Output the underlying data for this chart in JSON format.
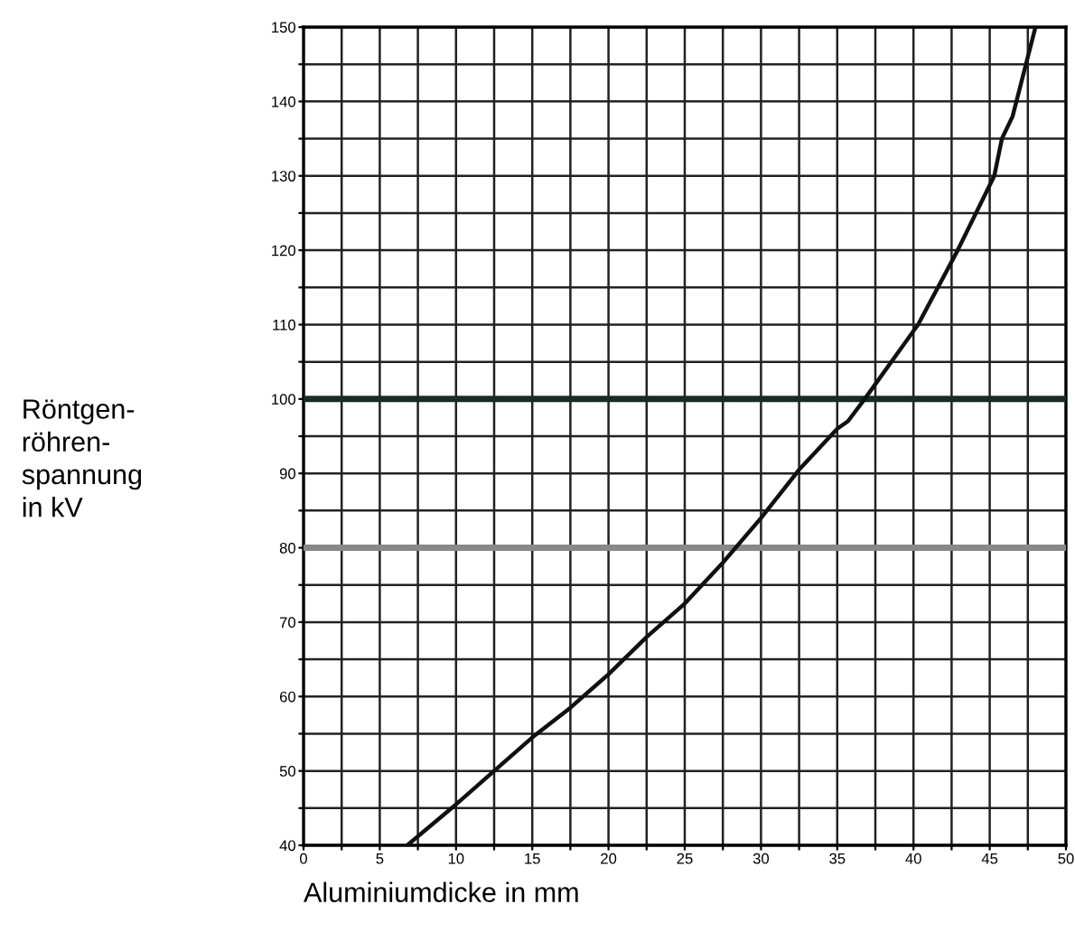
{
  "chart_data": {
    "type": "line",
    "xlabel": "Aluminiumdicke in mm",
    "ylabel": "Röntgen-\nröhren-\nspannung\nin kV",
    "x": [
      6.8,
      10,
      12.5,
      15,
      17.5,
      20,
      22.5,
      25,
      27.5,
      30,
      32.5,
      35,
      35.7,
      36.8,
      37.5,
      40.3,
      42.9,
      45.3,
      45.8,
      46.5,
      48
    ],
    "series": [
      {
        "color": "#111111",
        "values": [
          40,
          45.5,
          50,
          54.5,
          58.5,
          63,
          68,
          72.5,
          78,
          84,
          90.5,
          96,
          97,
          100,
          102,
          110,
          120,
          130,
          135,
          138,
          150
        ]
      }
    ],
    "xlim": [
      0,
      50
    ],
    "ylim": [
      40,
      150
    ],
    "xticks": [
      0,
      {
        "value": 2.5,
        "label": null
      },
      5,
      {
        "value": 7.5,
        "label": null
      },
      10,
      {
        "value": 12.5,
        "label": null
      },
      15,
      {
        "value": 17.5,
        "label": null
      },
      20,
      {
        "value": 22.5,
        "label": null
      },
      25,
      {
        "value": 27.5,
        "label": null
      },
      30,
      {
        "value": 32.5,
        "label": null
      },
      35,
      {
        "value": 37.5,
        "label": null
      },
      40,
      {
        "value": 42.5,
        "label": null
      },
      45,
      {
        "value": 47.5,
        "label": null
      },
      50
    ],
    "yticks": [
      40,
      {
        "value": 45,
        "label": null
      },
      50,
      {
        "value": 55,
        "label": null
      },
      60,
      {
        "value": 65,
        "label": null
      },
      70,
      {
        "value": 75,
        "label": null
      },
      80,
      {
        "value": 85,
        "label": null
      },
      90,
      {
        "value": 95,
        "label": null
      },
      100,
      {
        "value": 105,
        "label": null
      },
      110,
      {
        "value": 115,
        "label": null
      },
      120,
      {
        "value": 125,
        "label": null
      },
      130,
      {
        "value": 135,
        "label": null
      },
      140,
      {
        "value": 145,
        "label": null
      },
      150
    ],
    "ref_lines": [
      {
        "axis": "y",
        "value": 80,
        "color": "#888888"
      },
      {
        "axis": "y",
        "value": 100,
        "color": "#1a2a2a"
      }
    ],
    "grid": true,
    "marker": "none",
    "line_style": "solid",
    "legend": false
  }
}
